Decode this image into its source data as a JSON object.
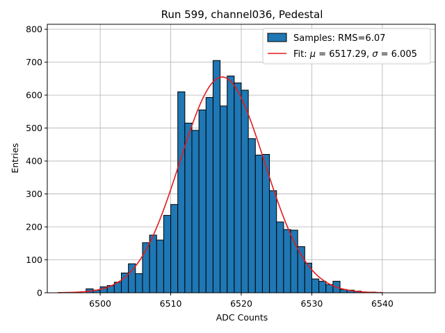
{
  "chart_data": {
    "type": "bar",
    "title": "Run 599, channel036, Pedestal",
    "xlabel": "ADC Counts",
    "ylabel": "Entries",
    "xlim": [
      6492.5,
      6547.5
    ],
    "ylim": [
      0,
      815
    ],
    "xticks": [
      6500,
      6510,
      6520,
      6530,
      6540
    ],
    "yticks": [
      0,
      100,
      200,
      300,
      400,
      500,
      600,
      700,
      800
    ],
    "grid": true,
    "legend_position": "top-right",
    "histogram": {
      "name": "Samples: RMS=6.07",
      "color": "#1f77b4",
      "bin_width": 1,
      "bin_starts": [
        6498,
        6499,
        6500,
        6501,
        6502,
        6503,
        6504,
        6505,
        6506,
        6507,
        6508,
        6509,
        6510,
        6511,
        6512,
        6513,
        6514,
        6515,
        6516,
        6517,
        6518,
        6519,
        6520,
        6521,
        6522,
        6523,
        6524,
        6525,
        6526,
        6527,
        6528,
        6529,
        6530,
        6531,
        6532,
        6533,
        6534,
        6535,
        6536,
        6537,
        6538
      ],
      "counts": [
        12,
        8,
        18,
        22,
        32,
        60,
        88,
        58,
        152,
        175,
        160,
        235,
        268,
        610,
        515,
        493,
        555,
        593,
        705,
        567,
        658,
        637,
        615,
        468,
        418,
        420,
        310,
        215,
        192,
        190,
        140,
        90,
        42,
        35,
        25,
        35,
        10,
        8,
        5,
        2,
        2
      ]
    },
    "fit": {
      "name_prefix": "Fit: ",
      "name_mu": "μ",
      "name_mid": " = 6517.29, ",
      "name_sigma": "σ",
      "name_suffix": " = 6.005",
      "color": "#e41a1c",
      "mu": 6517.29,
      "sigma": 6.005,
      "amplitude": 655,
      "x_range": [
        6494,
        6540
      ]
    }
  }
}
